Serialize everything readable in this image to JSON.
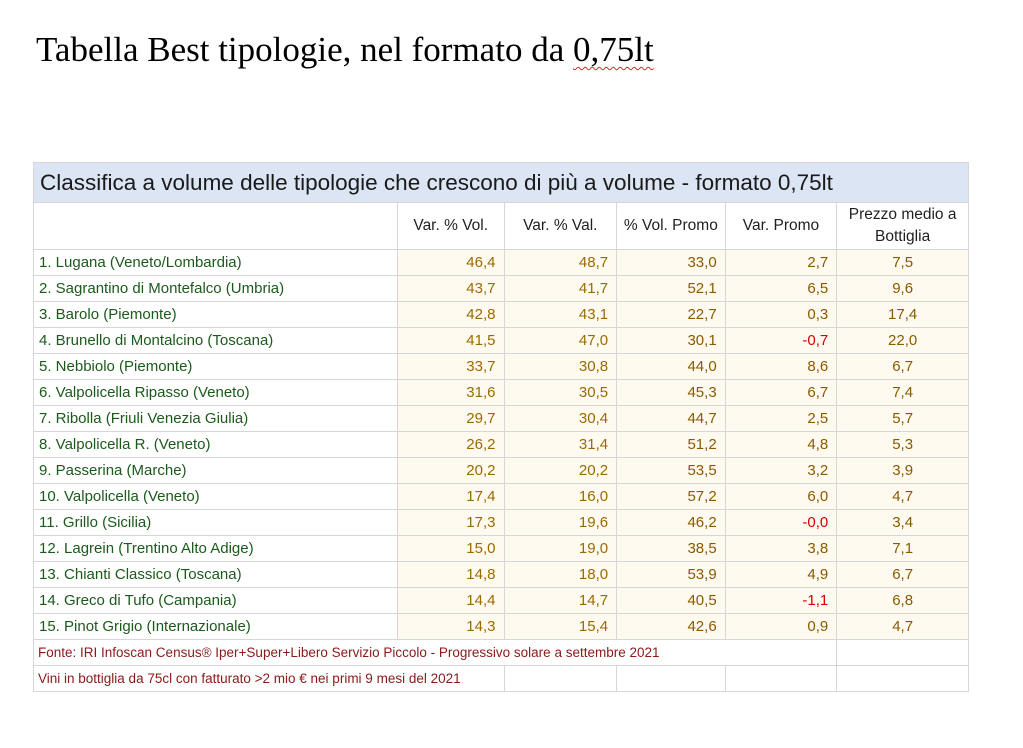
{
  "page_title": {
    "before": "Tabella Best tipologie, nel formato da ",
    "underlined": "0,75lt"
  },
  "table": {
    "banner": "Classifica a volume delle tipologie che crescono di più a volume - formato 0,75lt",
    "headers": [
      "Var. % Vol.",
      "Var. % Val.",
      "% Vol. Promo",
      "Var. Promo",
      "Prezzo medio a Bottiglia"
    ],
    "rows": [
      {
        "name": "1. Lugana (Veneto/Lombardia)",
        "values": [
          "46,4",
          "48,7",
          "33,0",
          "2,7",
          "7,5"
        ]
      },
      {
        "name": "2. Sagrantino di Montefalco (Umbria)",
        "values": [
          "43,7",
          "41,7",
          "52,1",
          "6,5",
          "9,6"
        ]
      },
      {
        "name": "3. Barolo (Piemonte)",
        "values": [
          "42,8",
          "43,1",
          "22,7",
          "0,3",
          "17,4"
        ]
      },
      {
        "name": "4. Brunello di Montalcino (Toscana)",
        "values": [
          "41,5",
          "47,0",
          "30,1",
          "-0,7",
          "22,0"
        ]
      },
      {
        "name": "5. Nebbiolo (Piemonte)",
        "values": [
          "33,7",
          "30,8",
          "44,0",
          "8,6",
          "6,7"
        ]
      },
      {
        "name": "6. Valpolicella Ripasso (Veneto)",
        "values": [
          "31,6",
          "30,5",
          "45,3",
          "6,7",
          "7,4"
        ]
      },
      {
        "name": "7. Ribolla (Friuli Venezia Giulia)",
        "values": [
          "29,7",
          "30,4",
          "44,7",
          "2,5",
          "5,7"
        ]
      },
      {
        "name": "8. Valpolicella R. (Veneto)",
        "values": [
          "26,2",
          "31,4",
          "51,2",
          "4,8",
          "5,3"
        ]
      },
      {
        "name": "9. Passerina (Marche)",
        "values": [
          "20,2",
          "20,2",
          "53,5",
          "3,2",
          "3,9"
        ]
      },
      {
        "name": "10. Valpolicella (Veneto)",
        "values": [
          "17,4",
          "16,0",
          "57,2",
          "6,0",
          "4,7"
        ]
      },
      {
        "name": "11. Grillo (Sicilia)",
        "values": [
          "17,3",
          "19,6",
          "46,2",
          "-0,0",
          "3,4"
        ]
      },
      {
        "name": "12. Lagrein (Trentino Alto Adige)",
        "values": [
          "15,0",
          "19,0",
          "38,5",
          "3,8",
          "7,1"
        ]
      },
      {
        "name": "13. Chianti Classico (Toscana)",
        "values": [
          "14,8",
          "18,0",
          "53,9",
          "4,9",
          "6,7"
        ]
      },
      {
        "name": "14. Greco di Tufo (Campania)",
        "values": [
          "14,4",
          "14,7",
          "40,5",
          "-1,1",
          "6,8"
        ]
      },
      {
        "name": "15. Pinot Grigio (Internazionale)",
        "values": [
          "14,3",
          "15,4",
          "42,6",
          "0,9",
          "4,7"
        ]
      }
    ],
    "footnotes": [
      "Fonte: IRI Infoscan Census® Iper+Super+Libero Servizio Piccolo - Progressivo solare a settembre 2021",
      "Vini in bottiglia da 75cl con fatturato >2 mio € nei primi 9 mesi del 2021"
    ]
  },
  "colors": {
    "banner_bg": "#dbe5f3",
    "row_name": "#1c5a1c",
    "value_text": "#9a6a00",
    "negative": "#d40000",
    "footnote": "#8b1a1a"
  }
}
